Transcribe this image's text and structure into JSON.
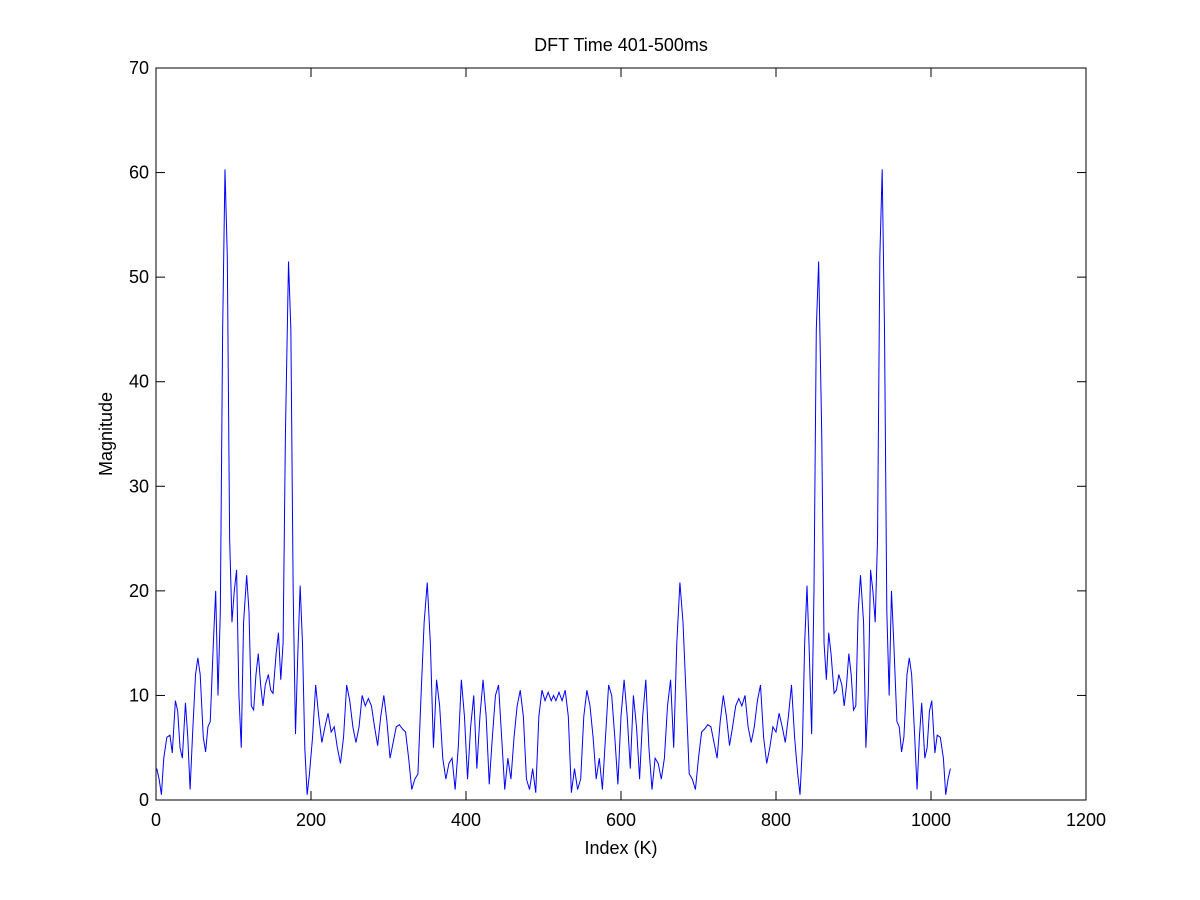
{
  "chart_data": {
    "type": "line",
    "title": "DFT Time 401-500ms",
    "x_label": "Index (K)",
    "y_label": "Magnitude",
    "xlim": [
      0,
      1200
    ],
    "ylim": [
      0,
      70
    ],
    "xticks": [
      0,
      200,
      400,
      600,
      800,
      1000,
      1200
    ],
    "yticks": [
      0,
      10,
      20,
      30,
      40,
      50,
      60,
      70
    ],
    "grid": false,
    "series": [
      {
        "color": "#0000ff",
        "x": [
          1,
          4,
          7,
          10,
          14,
          18,
          21,
          25,
          28,
          31,
          34,
          38,
          41,
          44,
          47,
          51,
          54,
          57,
          61,
          64,
          67,
          70,
          74,
          77,
          80,
          83,
          86,
          89,
          92,
          95,
          98,
          101,
          104,
          107,
          110,
          113,
          117,
          120,
          123,
          126,
          129,
          132,
          135,
          138,
          141,
          145,
          148,
          151,
          155,
          158,
          161,
          164,
          167,
          171,
          174,
          177,
          180,
          183,
          186,
          189,
          192,
          195,
          198,
          202,
          206,
          210,
          214,
          218,
          222,
          226,
          230,
          234,
          238,
          242,
          246,
          250,
          254,
          258,
          262,
          266,
          270,
          274,
          278,
          282,
          286,
          290,
          294,
          298,
          302,
          306,
          310,
          314,
          318,
          322,
          326,
          330,
          334,
          338,
          342,
          346,
          350,
          354,
          358,
          362,
          366,
          370,
          374,
          378,
          382,
          386,
          390,
          394,
          398,
          402,
          406,
          410,
          414,
          418,
          422,
          426,
          430,
          434,
          438,
          442,
          446,
          450,
          454,
          458,
          462,
          466,
          470,
          474,
          478,
          482,
          486,
          490,
          494,
          498,
          502,
          506,
          510,
          513,
          516,
          520,
          524,
          528,
          532,
          536,
          540,
          544,
          548,
          552,
          556,
          560,
          564,
          568,
          572,
          576,
          580,
          584,
          588,
          592,
          596,
          600,
          604,
          608,
          612,
          616,
          620,
          624,
          628,
          632,
          636,
          640,
          644,
          648,
          652,
          656,
          660,
          664,
          668,
          672,
          676,
          680,
          684,
          688,
          692,
          696,
          700,
          704,
          708,
          712,
          716,
          720,
          724,
          728,
          732,
          736,
          740,
          744,
          748,
          752,
          756,
          760,
          764,
          768,
          772,
          776,
          780,
          784,
          788,
          792,
          796,
          800,
          804,
          808,
          812,
          816,
          820,
          824,
          828,
          831,
          834,
          837,
          840,
          843,
          846,
          849,
          852,
          855,
          859,
          862,
          865,
          868,
          871,
          875,
          878,
          881,
          885,
          888,
          891,
          894,
          897,
          900,
          903,
          906,
          909,
          913,
          916,
          919,
          922,
          925,
          928,
          931,
          934,
          937,
          940,
          943,
          946,
          949,
          952,
          956,
          959,
          962,
          965,
          969,
          972,
          975,
          979,
          982,
          985,
          988,
          992,
          995,
          998,
          1001,
          1005,
          1008,
          1012,
          1016,
          1019,
          1022,
          1025
        ],
        "values": [
          3,
          2,
          0.5,
          4,
          6,
          6.2,
          4.5,
          9.5,
          8.5,
          5,
          4,
          9.3,
          6,
          1,
          6,
          12,
          13.6,
          12,
          6,
          4.6,
          7,
          7.5,
          15,
          20,
          10,
          18,
          45,
          60.3,
          52,
          25,
          17,
          20,
          22,
          10,
          5,
          17,
          21.5,
          18,
          9,
          8.6,
          12,
          14,
          11,
          9,
          11,
          12,
          10.5,
          10.2,
          14,
          16,
          11.5,
          15,
          35,
          51.5,
          45,
          20,
          6.3,
          14,
          20.5,
          15,
          5,
          0.5,
          2.5,
          6,
          11,
          8,
          5.5,
          7,
          8.3,
          6.5,
          7,
          5,
          3.5,
          6,
          11,
          9.5,
          7,
          5.5,
          7,
          10,
          9,
          9.7,
          9,
          7,
          5.2,
          8,
          10,
          7.5,
          4,
          5.5,
          7,
          7.2,
          6.8,
          6.5,
          4,
          1,
          2,
          2.5,
          10,
          17,
          20.8,
          15,
          5,
          11.5,
          9,
          4,
          2,
          3.5,
          4,
          1,
          5,
          11.5,
          8,
          2,
          7,
          10,
          3,
          8,
          11.5,
          8,
          1.5,
          6,
          10,
          11,
          6,
          1,
          4,
          2,
          6,
          9,
          10.5,
          8,
          2,
          1,
          3,
          0.7,
          8,
          10.5,
          9.5,
          10.3,
          9.5,
          10,
          9.5,
          10.3,
          9.5,
          10.5,
          8,
          0.7,
          3,
          1,
          2,
          8,
          10.5,
          9,
          6,
          2,
          4,
          1,
          6,
          11,
          10,
          6,
          1.5,
          8,
          11.5,
          8,
          3,
          10,
          7,
          2,
          8,
          11.5,
          5,
          1,
          4,
          3.5,
          2,
          4,
          9,
          11.5,
          5,
          15,
          20.8,
          17,
          10,
          2.5,
          2,
          1,
          4,
          6.5,
          6.8,
          7.2,
          7,
          5.5,
          4,
          7.5,
          10,
          8,
          5.2,
          7,
          9,
          9.7,
          9,
          10,
          7,
          5.5,
          7,
          9.5,
          11,
          6,
          3.5,
          5,
          7,
          6.5,
          8.3,
          7,
          5.5,
          8,
          11,
          6,
          2.5,
          0.5,
          5,
          15,
          20.5,
          14,
          6.3,
          20,
          45,
          51.5,
          35,
          15,
          11.5,
          16,
          14,
          10.2,
          10.5,
          12,
          11,
          9,
          11,
          14,
          12,
          8.6,
          9,
          18,
          21.5,
          17,
          5,
          10,
          22,
          20,
          17,
          25,
          52,
          60.3,
          45,
          18,
          10,
          20,
          15,
          7.5,
          7,
          4.6,
          6,
          12,
          13.6,
          12,
          6,
          1,
          6,
          9.3,
          4,
          5,
          8.5,
          9.5,
          4.5,
          6.2,
          6,
          4,
          0.5,
          2,
          3
        ]
      }
    ]
  }
}
